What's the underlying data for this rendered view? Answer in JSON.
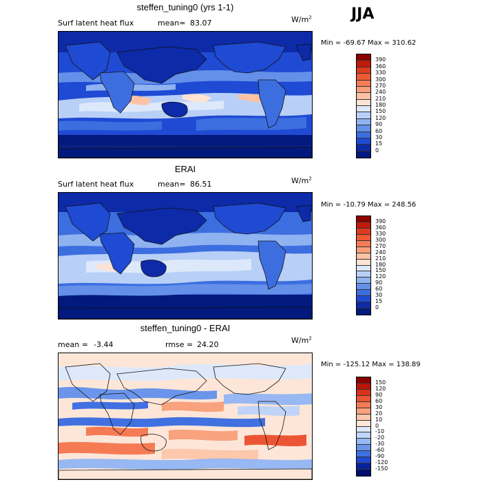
{
  "season": "JJA",
  "panels": [
    {
      "title": "steffen_tuning0 (yrs 1-1)",
      "left_text": "Surf latent heat flux",
      "mean_label": "mean=",
      "mean_value": "83.07",
      "rmse_label": "",
      "rmse_value": "",
      "units_base": "W/m",
      "units_exp": "2",
      "minmax": "Min = -69.67 Max = 310.62",
      "colorbar": {
        "labels": [
          "390",
          "360",
          "330",
          "300",
          "270",
          "240",
          "210",
          "180",
          "150",
          "120",
          "90",
          "60",
          "30",
          "15",
          "0"
        ],
        "colors": [
          "#8b0000",
          "#c01a0a",
          "#dd3b1e",
          "#ee5a34",
          "#f57c56",
          "#f89f7c",
          "#fcc2a6",
          "#fde3d3",
          "#dde9fb",
          "#b8d0f7",
          "#8fb2f1",
          "#6490ea",
          "#3d6ee0",
          "#1f4ad3",
          "#0d2aa8",
          "#021a7d"
        ],
        "diverging": false
      }
    },
    {
      "title": "ERAI",
      "left_text": "Surf latent heat flux",
      "mean_label": "mean=",
      "mean_value": "86.51",
      "rmse_label": "",
      "rmse_value": "",
      "units_base": "W/m",
      "units_exp": "2",
      "minmax": "Min = -10.79 Max = 248.56",
      "colorbar": {
        "labels": [
          "390",
          "360",
          "330",
          "300",
          "270",
          "240",
          "210",
          "180",
          "150",
          "120",
          "90",
          "60",
          "30",
          "15",
          "0"
        ],
        "colors": [
          "#8b0000",
          "#c01a0a",
          "#dd3b1e",
          "#ee5a34",
          "#f57c56",
          "#f89f7c",
          "#fcc2a6",
          "#fde3d3",
          "#dde9fb",
          "#b8d0f7",
          "#8fb2f1",
          "#6490ea",
          "#3d6ee0",
          "#1f4ad3",
          "#0d2aa8",
          "#021a7d"
        ],
        "diverging": false
      }
    },
    {
      "title": "steffen_tuning0 - ERAI",
      "left_text": "",
      "mean_label": "mean =",
      "mean_value": "-3.44",
      "rmse_label": "rmse =",
      "rmse_value": "24.20",
      "units_base": "W/m",
      "units_exp": "2",
      "minmax": "Min = -125.12 Max = 138.89",
      "colorbar": {
        "labels": [
          "150",
          "120",
          "90",
          "60",
          "30",
          "20",
          "10",
          "0",
          "-10",
          "-20",
          "-30",
          "-60",
          "-90",
          "-120",
          "-150"
        ],
        "colors": [
          "#8b0000",
          "#b8140a",
          "#d8321a",
          "#ec5533",
          "#f57b55",
          "#f9a27e",
          "#fcc7ab",
          "#fde6d8",
          "#dde8fb",
          "#bfd4f8",
          "#97b8f2",
          "#6a95eb",
          "#4170e0",
          "#1f48cf",
          "#0a2299",
          "#020f6e"
        ],
        "diverging": true
      }
    }
  ]
}
